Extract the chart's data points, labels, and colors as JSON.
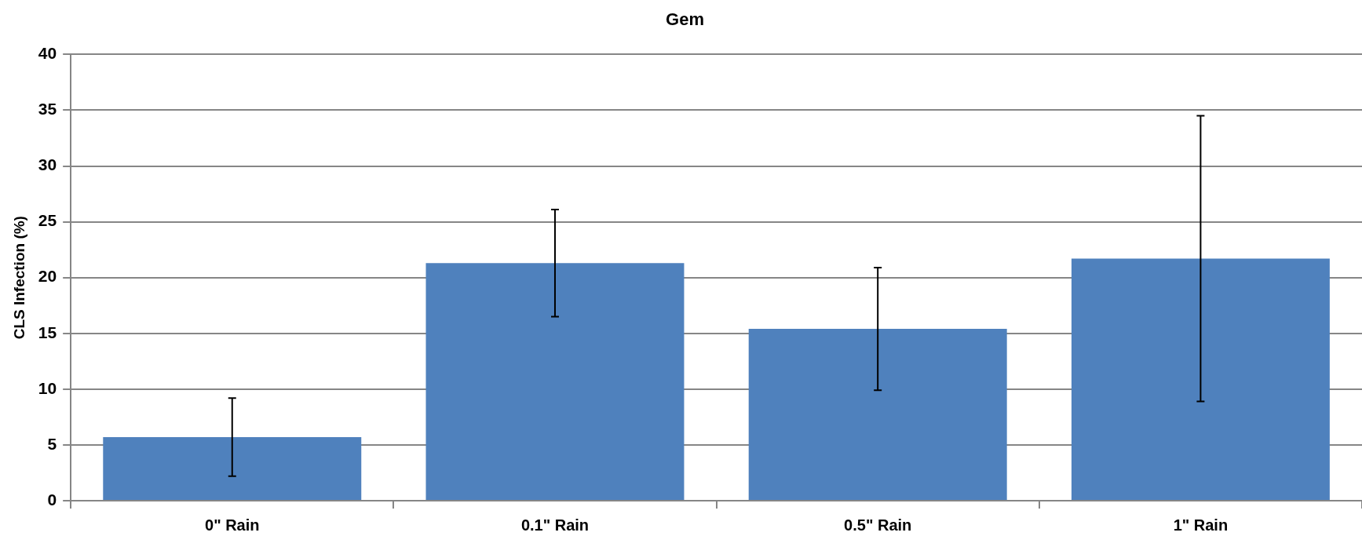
{
  "chart_data": {
    "type": "bar",
    "title": "Gem",
    "ylabel": "CLS Infection (%)",
    "categories": [
      "0\" Rain",
      "0.1\" Rain",
      "0.5\" Rain",
      "1\" Rain"
    ],
    "values": [
      5.7,
      21.3,
      15.4,
      21.7
    ],
    "errors": [
      3.5,
      4.8,
      5.5,
      12.8
    ],
    "color": "#4f81bd",
    "ylim": [
      0,
      40
    ],
    "yticks": [
      0,
      5,
      10,
      15,
      20,
      25,
      30,
      35,
      40
    ],
    "grid": "y",
    "legend": false
  }
}
